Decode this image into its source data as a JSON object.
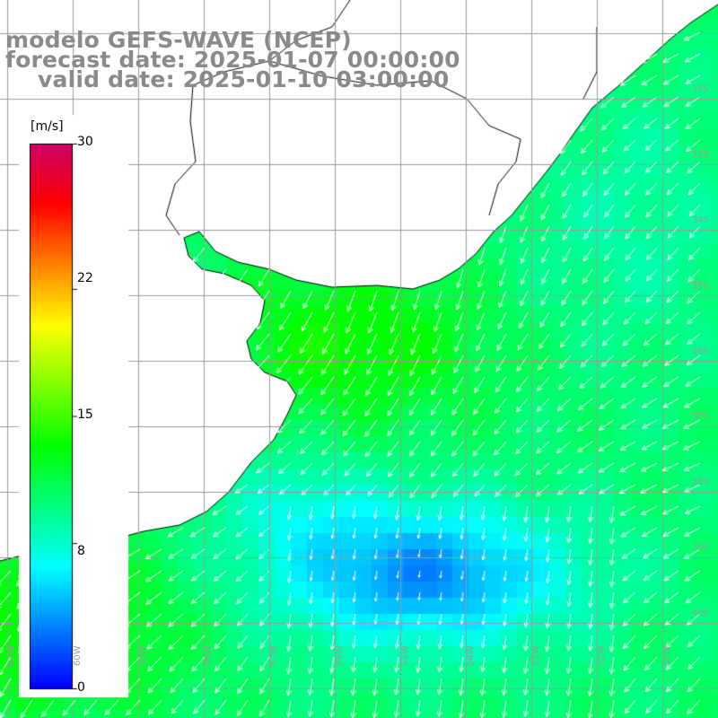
{
  "title": {
    "line1": "modelo GEFS-WAVE (NCEP)",
    "line2": "forecast date: 2025-01-07 00:00:00",
    "line3": "valid date: 2025-01-10 03:00:00"
  },
  "colorbar": {
    "units": "[m/s]",
    "ticks": [
      "30",
      "22",
      "15",
      "8",
      "0"
    ],
    "tick_values": [
      30,
      22,
      15,
      8,
      0
    ],
    "range": [
      0,
      30
    ],
    "colors": [
      "#0000ff",
      "#0080ff",
      "#00ffff",
      "#00ff80",
      "#00ff00",
      "#80ff00",
      "#ffff00",
      "#ff8000",
      "#ff0000",
      "#cc0066"
    ]
  },
  "axes": {
    "lat_labels": [
      "32S",
      "33S",
      "34S",
      "35S",
      "36S",
      "37S",
      "38S",
      "39S",
      "40S"
    ],
    "lon_labels": [
      "61W",
      "60W",
      "59W",
      "58W",
      "57W",
      "56W",
      "55W",
      "54W",
      "53W",
      "52W",
      "51W"
    ]
  },
  "map": {
    "variable": "wind speed",
    "land_color": "#ffffff",
    "coast_color": "#000000",
    "grid_color": "#9a9a9a",
    "vector_color": "#ffffff"
  }
}
